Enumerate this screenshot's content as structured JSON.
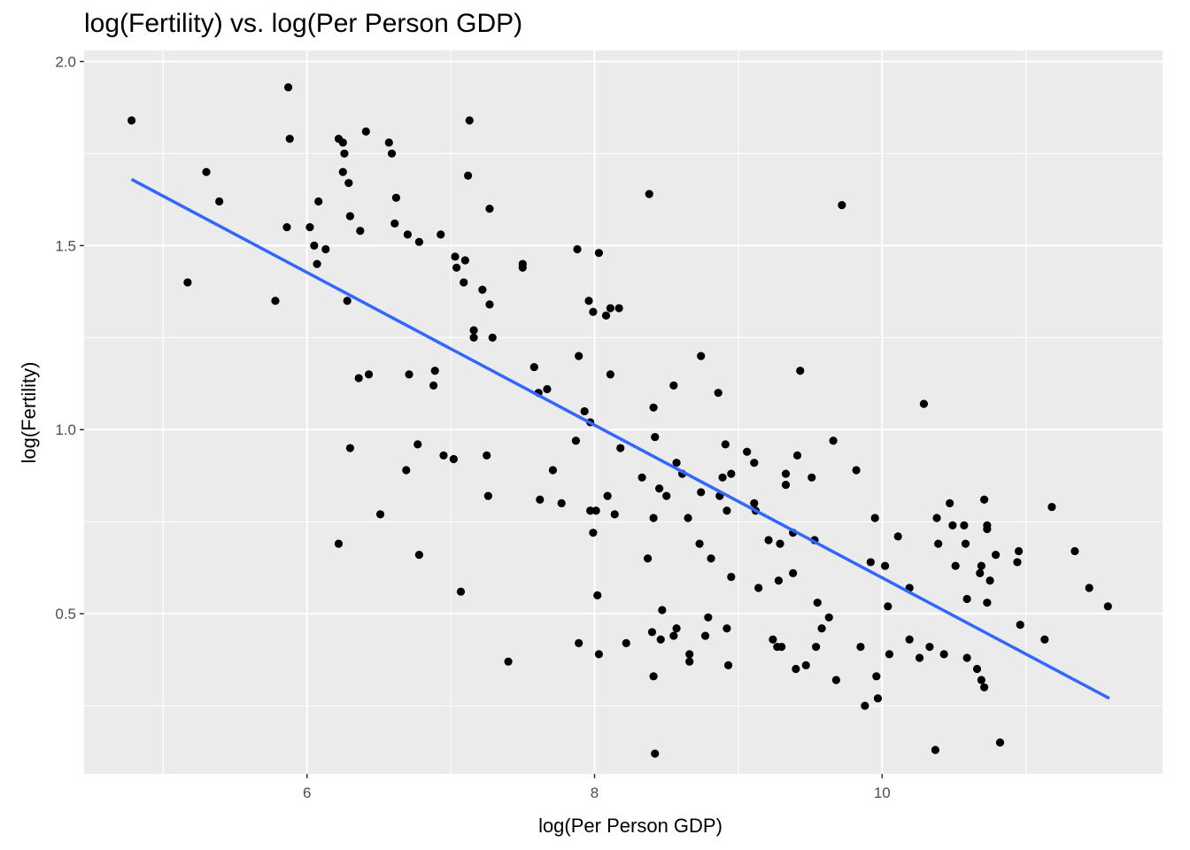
{
  "chart_data": {
    "type": "scatter",
    "title": "log(Fertility) vs. log(Per Person GDP)",
    "xlabel": "log(Per Person GDP)",
    "ylabel": "log(Fertility)",
    "xlim": [
      4.45,
      11.95
    ],
    "ylim": [
      0.065,
      2.03
    ],
    "x_ticks": [
      6,
      8,
      10
    ],
    "x_tick_labels": [
      "6",
      "8",
      "10"
    ],
    "y_ticks": [
      0.5,
      1.0,
      1.5,
      2.0
    ],
    "y_tick_labels": [
      "0.5",
      "1.0",
      "1.5",
      "2.0"
    ],
    "grid": true,
    "background": "#ebebeb",
    "grid_color": "#ffffff",
    "point_color": "#000000",
    "line_color": "#3366ff",
    "fit_line": {
      "x": [
        4.78,
        11.58
      ],
      "y": [
        1.68,
        0.27
      ]
    },
    "points": [
      [
        4.78,
        1.84
      ],
      [
        5.3,
        1.7
      ],
      [
        5.39,
        1.62
      ],
      [
        5.17,
        1.4
      ],
      [
        5.78,
        1.35
      ],
      [
        5.87,
        1.93
      ],
      [
        5.88,
        1.79
      ],
      [
        5.86,
        1.55
      ],
      [
        6.02,
        1.55
      ],
      [
        6.05,
        1.5
      ],
      [
        6.08,
        1.62
      ],
      [
        6.07,
        1.45
      ],
      [
        6.13,
        1.49
      ],
      [
        6.22,
        1.79
      ],
      [
        6.25,
        1.78
      ],
      [
        6.26,
        1.75
      ],
      [
        6.25,
        1.7
      ],
      [
        6.29,
        1.67
      ],
      [
        6.3,
        1.58
      ],
      [
        6.28,
        1.35
      ],
      [
        6.3,
        0.95
      ],
      [
        6.22,
        0.69
      ],
      [
        6.37,
        1.54
      ],
      [
        6.41,
        1.81
      ],
      [
        6.36,
        1.14
      ],
      [
        6.43,
        1.15
      ],
      [
        6.51,
        0.77
      ],
      [
        6.57,
        1.78
      ],
      [
        6.59,
        1.75
      ],
      [
        6.62,
        1.63
      ],
      [
        6.61,
        1.56
      ],
      [
        6.7,
        1.53
      ],
      [
        6.71,
        1.15
      ],
      [
        6.69,
        0.89
      ],
      [
        6.77,
        0.96
      ],
      [
        6.78,
        1.51
      ],
      [
        6.78,
        0.66
      ],
      [
        6.89,
        1.16
      ],
      [
        6.88,
        1.12
      ],
      [
        6.93,
        1.53
      ],
      [
        6.95,
        0.93
      ],
      [
        7.03,
        1.47
      ],
      [
        7.04,
        1.44
      ],
      [
        7.02,
        0.92
      ],
      [
        7.1,
        1.46
      ],
      [
        7.09,
        1.4
      ],
      [
        7.07,
        0.56
      ],
      [
        7.13,
        1.84
      ],
      [
        7.12,
        1.69
      ],
      [
        7.16,
        1.27
      ],
      [
        7.16,
        1.25
      ],
      [
        7.22,
        1.38
      ],
      [
        7.27,
        1.6
      ],
      [
        7.27,
        1.34
      ],
      [
        7.29,
        1.25
      ],
      [
        7.25,
        0.93
      ],
      [
        7.26,
        0.82
      ],
      [
        7.4,
        0.37
      ],
      [
        7.5,
        1.45
      ],
      [
        7.5,
        1.44
      ],
      [
        7.58,
        1.17
      ],
      [
        7.61,
        1.1
      ],
      [
        7.62,
        0.81
      ],
      [
        7.67,
        1.11
      ],
      [
        7.71,
        0.89
      ],
      [
        7.77,
        0.8
      ],
      [
        7.88,
        1.49
      ],
      [
        7.89,
        1.2
      ],
      [
        7.87,
        0.97
      ],
      [
        7.89,
        0.42
      ],
      [
        7.93,
        1.05
      ],
      [
        7.96,
        1.35
      ],
      [
        7.97,
        1.02
      ],
      [
        7.97,
        0.78
      ],
      [
        7.99,
        0.72
      ],
      [
        7.99,
        1.32
      ],
      [
        8.01,
        0.78
      ],
      [
        8.02,
        0.55
      ],
      [
        8.03,
        0.39
      ],
      [
        8.03,
        1.48
      ],
      [
        8.08,
        1.31
      ],
      [
        8.09,
        0.82
      ],
      [
        8.11,
        1.33
      ],
      [
        8.11,
        1.15
      ],
      [
        8.14,
        0.77
      ],
      [
        8.17,
        1.33
      ],
      [
        8.18,
        0.95
      ],
      [
        8.22,
        0.42
      ],
      [
        8.33,
        0.87
      ],
      [
        8.37,
        0.65
      ],
      [
        8.38,
        1.64
      ],
      [
        8.4,
        0.45
      ],
      [
        8.41,
        1.06
      ],
      [
        8.41,
        0.76
      ],
      [
        8.42,
        0.98
      ],
      [
        8.41,
        0.33
      ],
      [
        8.42,
        0.12
      ],
      [
        8.45,
        0.84
      ],
      [
        8.46,
        0.43
      ],
      [
        8.47,
        0.51
      ],
      [
        8.5,
        0.82
      ],
      [
        8.55,
        0.44
      ],
      [
        8.55,
        1.12
      ],
      [
        8.57,
        0.91
      ],
      [
        8.57,
        0.46
      ],
      [
        8.61,
        0.88
      ],
      [
        8.65,
        0.76
      ],
      [
        8.66,
        0.39
      ],
      [
        8.66,
        0.37
      ],
      [
        8.73,
        0.69
      ],
      [
        8.74,
        1.2
      ],
      [
        8.74,
        0.83
      ],
      [
        8.77,
        0.44
      ],
      [
        8.79,
        0.49
      ],
      [
        8.81,
        0.65
      ],
      [
        8.86,
        1.1
      ],
      [
        8.87,
        0.82
      ],
      [
        8.89,
        0.87
      ],
      [
        8.91,
        0.96
      ],
      [
        8.92,
        0.78
      ],
      [
        8.92,
        0.46
      ],
      [
        8.93,
        0.36
      ],
      [
        8.95,
        0.6
      ],
      [
        8.95,
        0.88
      ],
      [
        9.06,
        0.94
      ],
      [
        9.11,
        0.8
      ],
      [
        9.11,
        0.91
      ],
      [
        9.12,
        0.78
      ],
      [
        9.14,
        0.57
      ],
      [
        9.21,
        0.7
      ],
      [
        9.24,
        0.43
      ],
      [
        9.27,
        0.41
      ],
      [
        9.29,
        0.69
      ],
      [
        9.28,
        0.59
      ],
      [
        9.3,
        0.41
      ],
      [
        9.33,
        0.88
      ],
      [
        9.33,
        0.85
      ],
      [
        9.38,
        0.72
      ],
      [
        9.38,
        0.61
      ],
      [
        9.4,
        0.35
      ],
      [
        9.41,
        0.93
      ],
      [
        9.43,
        1.16
      ],
      [
        9.47,
        0.36
      ],
      [
        9.51,
        0.87
      ],
      [
        9.53,
        0.7
      ],
      [
        9.54,
        0.41
      ],
      [
        9.55,
        0.53
      ],
      [
        9.58,
        0.46
      ],
      [
        9.63,
        0.49
      ],
      [
        9.66,
        0.97
      ],
      [
        9.68,
        0.32
      ],
      [
        9.72,
        1.61
      ],
      [
        9.82,
        0.89
      ],
      [
        9.85,
        0.41
      ],
      [
        9.88,
        0.25
      ],
      [
        9.92,
        0.64
      ],
      [
        9.95,
        0.76
      ],
      [
        9.96,
        0.33
      ],
      [
        9.97,
        0.27
      ],
      [
        10.02,
        0.63
      ],
      [
        10.04,
        0.52
      ],
      [
        10.05,
        0.39
      ],
      [
        10.11,
        0.71
      ],
      [
        10.19,
        0.57
      ],
      [
        10.19,
        0.43
      ],
      [
        10.26,
        0.38
      ],
      [
        10.29,
        1.07
      ],
      [
        10.33,
        0.41
      ],
      [
        10.37,
        0.13
      ],
      [
        10.38,
        0.76
      ],
      [
        10.39,
        0.69
      ],
      [
        10.43,
        0.39
      ],
      [
        10.47,
        0.8
      ],
      [
        10.49,
        0.74
      ],
      [
        10.51,
        0.63
      ],
      [
        10.57,
        0.74
      ],
      [
        10.58,
        0.69
      ],
      [
        10.59,
        0.54
      ],
      [
        10.59,
        0.38
      ],
      [
        10.66,
        0.35
      ],
      [
        10.68,
        0.61
      ],
      [
        10.69,
        0.63
      ],
      [
        10.69,
        0.32
      ],
      [
        10.71,
        0.81
      ],
      [
        10.71,
        0.3
      ],
      [
        10.73,
        0.74
      ],
      [
        10.73,
        0.73
      ],
      [
        10.73,
        0.53
      ],
      [
        10.75,
        0.59
      ],
      [
        10.79,
        0.66
      ],
      [
        10.82,
        0.15
      ],
      [
        10.94,
        0.64
      ],
      [
        10.95,
        0.67
      ],
      [
        10.96,
        0.47
      ],
      [
        11.13,
        0.43
      ],
      [
        11.18,
        0.79
      ],
      [
        11.34,
        0.67
      ],
      [
        11.44,
        0.57
      ],
      [
        11.57,
        0.52
      ]
    ]
  }
}
